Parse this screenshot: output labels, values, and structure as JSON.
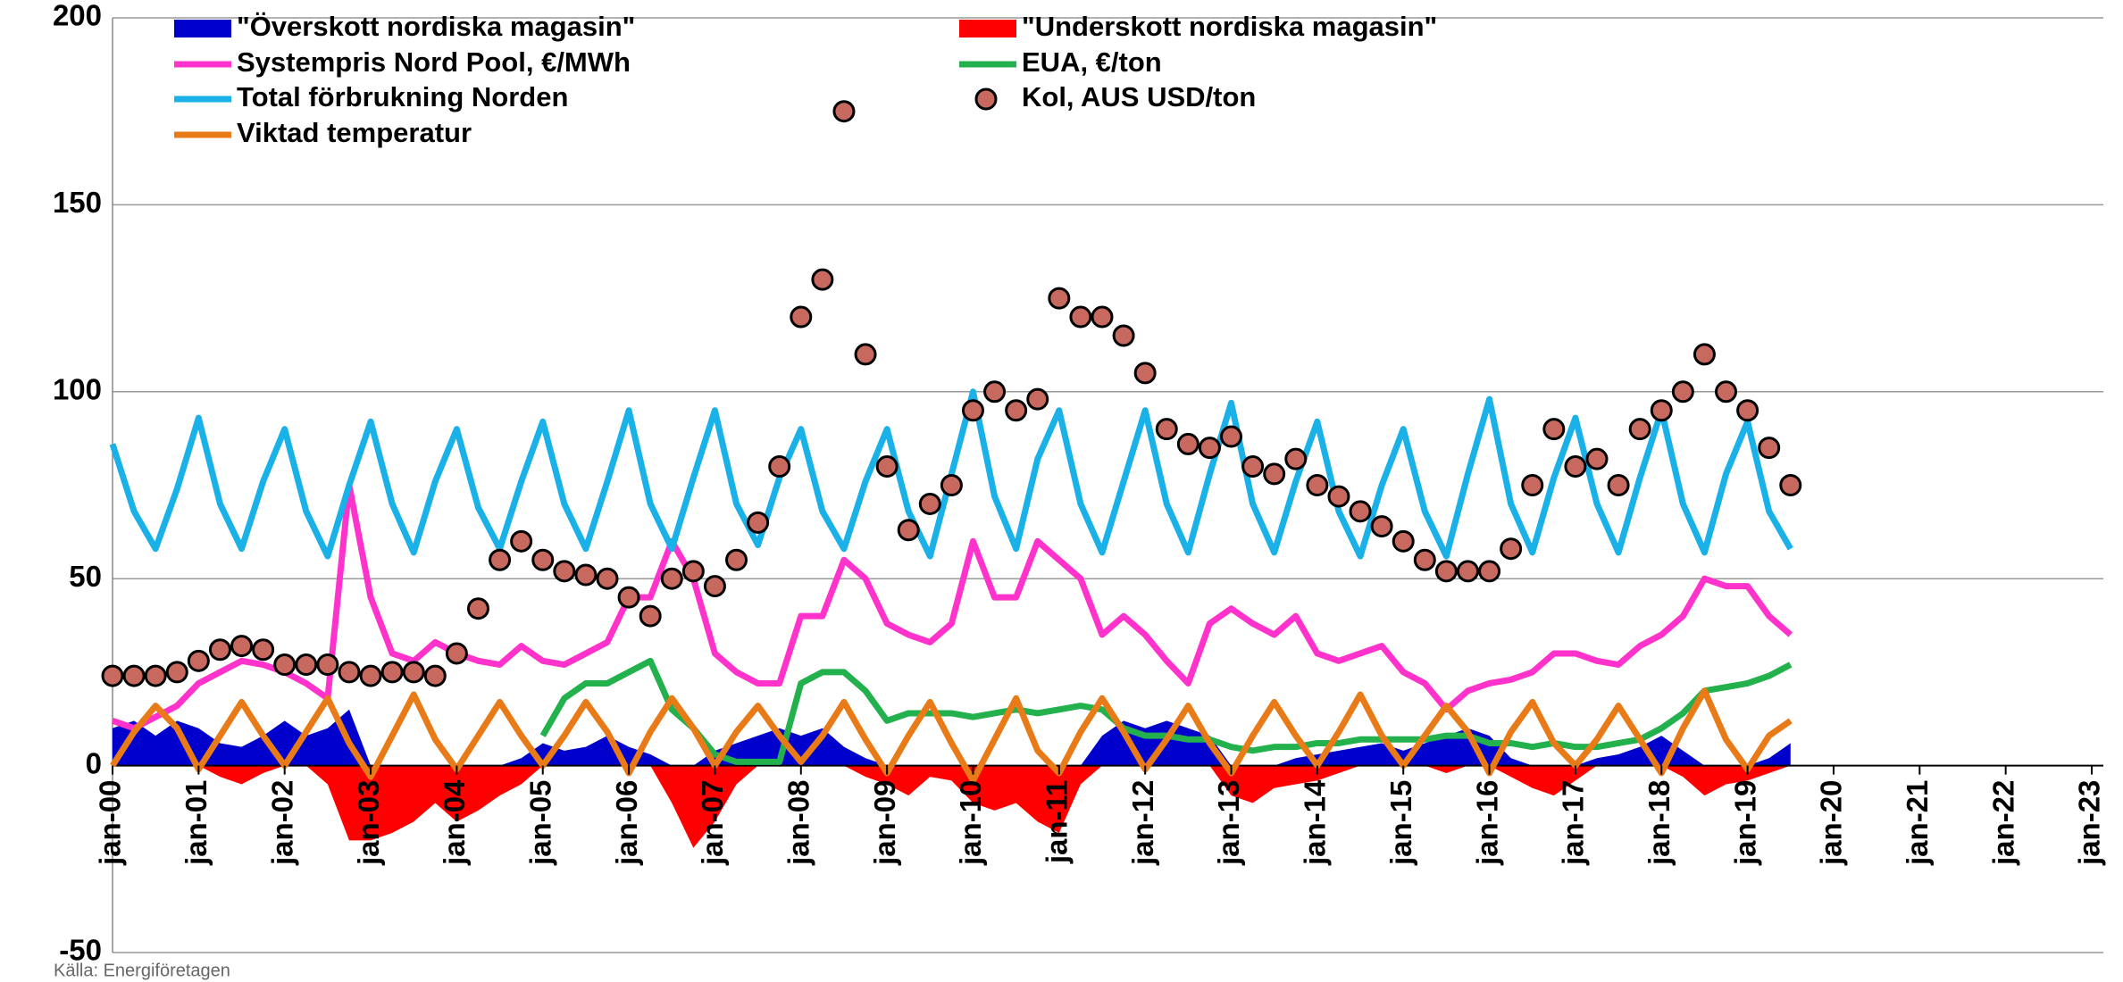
{
  "chart_data": {
    "type": "line",
    "source": "Källa: Energiföretagen",
    "x": [
      2000,
      2000.25,
      2000.5,
      2000.75,
      2001,
      2001.25,
      2001.5,
      2001.75,
      2002,
      2002.25,
      2002.5,
      2002.75,
      2003,
      2003.25,
      2003.5,
      2003.75,
      2004,
      2004.25,
      2004.5,
      2004.75,
      2005,
      2005.25,
      2005.5,
      2005.75,
      2006,
      2006.25,
      2006.5,
      2006.75,
      2007,
      2007.25,
      2007.5,
      2007.75,
      2008,
      2008.25,
      2008.5,
      2008.75,
      2009,
      2009.25,
      2009.5,
      2009.75,
      2010,
      2010.25,
      2010.5,
      2010.75,
      2011,
      2011.25,
      2011.5,
      2011.75,
      2012,
      2012.25,
      2012.5,
      2012.75,
      2013,
      2013.25,
      2013.5,
      2013.75,
      2014,
      2014.25,
      2014.5,
      2014.75,
      2015,
      2015.25,
      2015.5,
      2015.75,
      2016,
      2016.25,
      2016.5,
      2016.75,
      2017,
      2017.25,
      2017.5,
      2017.75,
      2018,
      2018.25,
      2018.5,
      2018.75,
      2019,
      2019.25,
      2019.5
    ],
    "series": [
      {
        "name": "\"Överskott nordiska magasin\"",
        "kind": "area",
        "color": "#0000cc",
        "values": [
          10,
          12,
          8,
          12,
          10,
          6,
          5,
          8,
          12,
          8,
          10,
          15,
          0,
          0,
          0,
          0,
          0,
          0,
          0,
          2,
          6,
          4,
          5,
          8,
          5,
          3,
          0,
          0,
          4,
          6,
          8,
          10,
          8,
          10,
          5,
          2,
          0,
          0,
          0,
          0,
          0,
          0,
          0,
          0,
          0,
          0,
          8,
          12,
          10,
          12,
          10,
          8,
          0,
          0,
          0,
          2,
          3,
          4,
          5,
          6,
          4,
          6,
          8,
          10,
          8,
          2,
          0,
          0,
          0,
          2,
          3,
          5,
          8,
          4,
          0,
          0,
          0,
          2,
          6
        ]
      },
      {
        "name": "\"Underskott nordiska magasin\"",
        "kind": "area",
        "color": "#ff0000",
        "values": [
          0,
          0,
          0,
          0,
          0,
          -3,
          -5,
          -2,
          0,
          0,
          -5,
          -20,
          -20,
          -18,
          -15,
          -10,
          -15,
          -12,
          -8,
          -5,
          0,
          0,
          0,
          0,
          0,
          0,
          -10,
          -22,
          -15,
          -5,
          0,
          0,
          0,
          0,
          0,
          -3,
          -5,
          -8,
          -3,
          -4,
          -10,
          -12,
          -10,
          -15,
          -18,
          -5,
          0,
          0,
          0,
          0,
          0,
          0,
          -8,
          -10,
          -6,
          -5,
          -4,
          -2,
          0,
          0,
          0,
          0,
          -2,
          0,
          0,
          -3,
          -6,
          -8,
          -4,
          0,
          0,
          0,
          0,
          -3,
          -8,
          -5,
          -4,
          -2,
          0
        ]
      },
      {
        "name": "Systempris Nord Pool, €/MWh",
        "kind": "line",
        "color": "#ff33cc",
        "values": [
          12,
          10,
          13,
          16,
          22,
          25,
          28,
          27,
          25,
          22,
          18,
          75,
          45,
          30,
          28,
          33,
          30,
          28,
          27,
          32,
          28,
          27,
          30,
          33,
          45,
          45,
          60,
          50,
          30,
          25,
          22,
          22,
          40,
          40,
          55,
          50,
          38,
          35,
          33,
          38,
          60,
          45,
          45,
          60,
          55,
          50,
          35,
          40,
          35,
          28,
          22,
          38,
          42,
          38,
          35,
          40,
          30,
          28,
          30,
          32,
          25,
          22,
          15,
          20,
          22,
          23,
          25,
          30,
          30,
          28,
          27,
          32,
          35,
          40,
          50,
          48,
          48,
          40,
          35
        ]
      },
      {
        "name": "EUA, €/ton",
        "kind": "line",
        "color": "#22b14c",
        "values": [
          null,
          null,
          null,
          null,
          null,
          null,
          null,
          null,
          null,
          null,
          null,
          null,
          null,
          null,
          null,
          null,
          null,
          null,
          null,
          null,
          8,
          18,
          22,
          22,
          25,
          28,
          15,
          10,
          3,
          1,
          1,
          1,
          22,
          25,
          25,
          20,
          12,
          14,
          14,
          14,
          13,
          14,
          15,
          14,
          15,
          16,
          15,
          10,
          8,
          8,
          7,
          7,
          5,
          4,
          5,
          5,
          6,
          6,
          7,
          7,
          7,
          7,
          8,
          8,
          6,
          6,
          5,
          6,
          5,
          5,
          6,
          7,
          10,
          14,
          20,
          21,
          22,
          24,
          27
        ]
      },
      {
        "name": "Total förbrukning Norden",
        "kind": "line",
        "color": "#1ab0e8",
        "values": [
          86,
          68,
          58,
          74,
          93,
          70,
          58,
          76,
          90,
          68,
          56,
          75,
          92,
          70,
          57,
          76,
          90,
          69,
          58,
          76,
          92,
          70,
          58,
          76,
          95,
          70,
          58,
          77,
          95,
          70,
          59,
          77,
          90,
          68,
          58,
          76,
          90,
          68,
          56,
          78,
          100,
          72,
          58,
          82,
          95,
          70,
          57,
          76,
          95,
          70,
          57,
          78,
          97,
          70,
          57,
          76,
          92,
          68,
          56,
          75,
          90,
          68,
          56,
          78,
          98,
          70,
          57,
          77,
          93,
          70,
          57,
          77,
          95,
          70,
          57,
          78,
          92,
          68,
          58
        ]
      },
      {
        "name": "Kol, AUS USD/ton",
        "kind": "scatter",
        "color": "#c8695f",
        "values": [
          24,
          24,
          24,
          25,
          28,
          31,
          32,
          31,
          27,
          27,
          27,
          25,
          24,
          25,
          25,
          24,
          30,
          42,
          55,
          60,
          55,
          52,
          51,
          50,
          45,
          40,
          50,
          52,
          48,
          55,
          65,
          80,
          120,
          130,
          175,
          110,
          80,
          63,
          70,
          75,
          95,
          100,
          95,
          98,
          125,
          120,
          120,
          115,
          105,
          90,
          86,
          85,
          88,
          80,
          78,
          82,
          75,
          72,
          68,
          64,
          60,
          55,
          52,
          52,
          52,
          58,
          75,
          90,
          80,
          82,
          75,
          90,
          95,
          100,
          110,
          100,
          95,
          85,
          75
        ]
      },
      {
        "name": "Viktad temperatur",
        "kind": "line",
        "color": "#e87b17",
        "values": [
          0,
          9,
          16,
          10,
          -1,
          8,
          17,
          8,
          0,
          9,
          18,
          6,
          -3,
          8,
          19,
          7,
          -1,
          8,
          17,
          8,
          0,
          8,
          17,
          9,
          -2,
          9,
          18,
          10,
          0,
          9,
          16,
          8,
          1,
          8,
          17,
          7,
          -2,
          8,
          17,
          6,
          -4,
          7,
          18,
          4,
          -2,
          9,
          18,
          9,
          -1,
          7,
          16,
          6,
          -2,
          8,
          17,
          8,
          0,
          9,
          19,
          8,
          0,
          8,
          16,
          9,
          -2,
          9,
          17,
          6,
          0,
          7,
          16,
          7,
          -2,
          10,
          20,
          7,
          -1,
          8,
          12
        ]
      }
    ],
    "xlim": [
      2000,
      2023
    ],
    "xticks": [
      {
        "value": 2000,
        "label": "jan-00"
      },
      {
        "value": 2001,
        "label": "jan-01"
      },
      {
        "value": 2002,
        "label": "jan-02"
      },
      {
        "value": 2003,
        "label": "jan-03"
      },
      {
        "value": 2004,
        "label": "jan-04"
      },
      {
        "value": 2005,
        "label": "jan-05"
      },
      {
        "value": 2006,
        "label": "jan-06"
      },
      {
        "value": 2007,
        "label": "jan-07"
      },
      {
        "value": 2008,
        "label": "jan-08"
      },
      {
        "value": 2009,
        "label": "jan-09"
      },
      {
        "value": 2010,
        "label": "jan-10"
      },
      {
        "value": 2011,
        "label": "jan-11"
      },
      {
        "value": 2012,
        "label": "jan-12"
      },
      {
        "value": 2013,
        "label": "jan-13"
      },
      {
        "value": 2014,
        "label": "jan-14"
      },
      {
        "value": 2015,
        "label": "jan-15"
      },
      {
        "value": 2016,
        "label": "jan-16"
      },
      {
        "value": 2017,
        "label": "jan-17"
      },
      {
        "value": 2018,
        "label": "jan-18"
      },
      {
        "value": 2019,
        "label": "jan-19"
      },
      {
        "value": 2020,
        "label": "jan-20"
      },
      {
        "value": 2021,
        "label": "jan-21"
      },
      {
        "value": 2022,
        "label": "jan-22"
      },
      {
        "value": 2023,
        "label": "jan-23"
      }
    ],
    "ylim": [
      -50,
      200
    ],
    "yticks": [
      -50,
      0,
      50,
      100,
      150,
      200
    ],
    "grid": true,
    "legend": "top-left"
  }
}
